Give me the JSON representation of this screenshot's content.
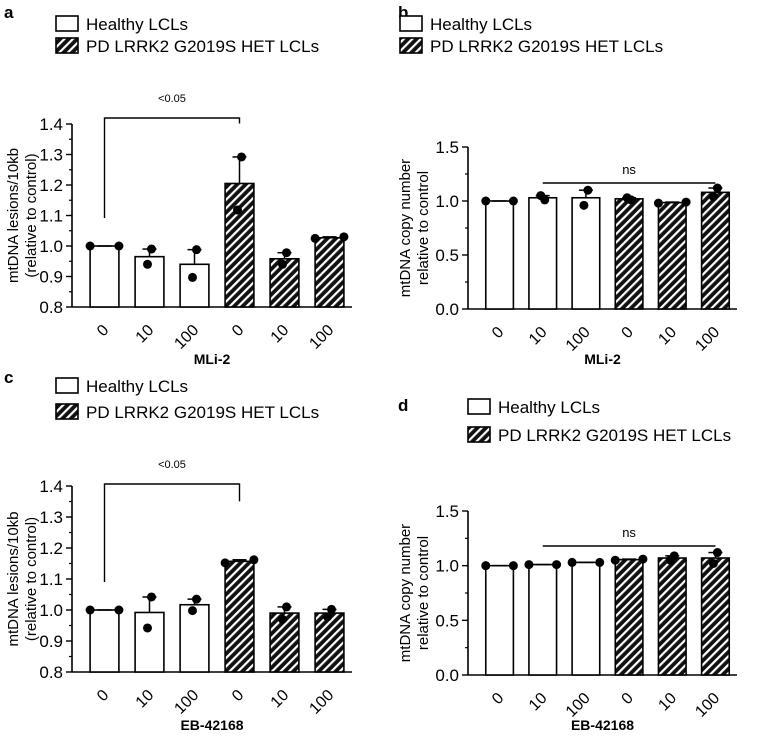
{
  "chart_data": [
    {
      "panel": "a",
      "type": "bar",
      "legend": [
        "Healthy LCLs",
        "PD LRRK2 G2019S HET LCLs"
      ],
      "categories": [
        "0",
        "10",
        "100",
        "0",
        "10",
        "100"
      ],
      "xlabel": "MLi-2",
      "ylabel": [
        "mtDNA lesions/10kb",
        "(relative to control)"
      ],
      "ylim": [
        0.8,
        1.4
      ],
      "yticks": [
        "0.8",
        "0.9",
        "1.0",
        "1.1",
        "1.2",
        "1.3",
        "1.4"
      ],
      "values": [
        1.0,
        0.965,
        0.94,
        1.205,
        0.958,
        1.027
      ],
      "points": [
        [
          1.0,
          1.0
        ],
        [
          0.99,
          0.94
        ],
        [
          0.988,
          0.897
        ],
        [
          1.292,
          1.118
        ],
        [
          0.978,
          0.94
        ],
        [
          1.025,
          1.03
        ]
      ],
      "annotation": {
        "text": "<0.05",
        "from": 0,
        "to": 3
      }
    },
    {
      "panel": "b",
      "type": "bar",
      "legend": [
        "Healthy LCLs",
        "PD LRRK2 G2019S HET LCLs"
      ],
      "categories": [
        "0",
        "10",
        "100",
        "0",
        "10",
        "100"
      ],
      "xlabel": "MLi-2",
      "ylabel": [
        "mtDNA copy number",
        "relative to control"
      ],
      "ylim": [
        0,
        1.5
      ],
      "yticks": [
        "0.0",
        "0.5",
        "1.0",
        "1.5"
      ],
      "values": [
        1.0,
        1.03,
        1.03,
        1.02,
        0.985,
        1.08
      ],
      "points": [
        [
          1.0,
          1.0
        ],
        [
          1.01,
          1.05
        ],
        [
          1.1,
          0.96
        ],
        [
          1.01,
          1.03
        ],
        [
          0.98,
          0.99
        ],
        [
          1.12,
          1.04
        ]
      ],
      "annotation": {
        "text": "ns",
        "from": 1,
        "to": 5
      }
    },
    {
      "panel": "c",
      "type": "bar",
      "legend": [
        "Healthy LCLs",
        "PD LRRK2 G2019S HET LCLs"
      ],
      "categories": [
        "0",
        "10",
        "100",
        "0",
        "10",
        "100"
      ],
      "xlabel": "EB-42168",
      "ylabel": [
        "mtDNA lesions/10kb",
        "(relative to control)"
      ],
      "ylim": [
        0.8,
        1.4
      ],
      "yticks": [
        "0.8",
        "0.9",
        "1.0",
        "1.1",
        "1.2",
        "1.3",
        "1.4"
      ],
      "values": [
        1.0,
        0.992,
        1.017,
        1.157,
        0.99,
        0.99
      ],
      "points": [
        [
          1.0,
          1.0
        ],
        [
          1.042,
          0.942
        ],
        [
          1.035,
          0.998
        ],
        [
          1.152,
          1.162
        ],
        [
          1.01,
          0.97
        ],
        [
          1.002,
          0.978
        ]
      ],
      "annotation": {
        "text": "<0.05",
        "from": 0,
        "to": 3
      }
    },
    {
      "panel": "d",
      "type": "bar",
      "legend": [
        "Healthy LCLs",
        "PD LRRK2 G2019S HET LCLs"
      ],
      "categories": [
        "0",
        "10",
        "100",
        "0",
        "10",
        "100"
      ],
      "xlabel": "EB-42168",
      "ylabel": [
        "mtDNA copy number",
        "relative to control"
      ],
      "ylim": [
        0,
        1.5
      ],
      "yticks": [
        "0.0",
        "0.5",
        "1.0",
        "1.5"
      ],
      "values": [
        1.0,
        1.01,
        1.03,
        1.055,
        1.07,
        1.07
      ],
      "points": [
        [
          1.0,
          1.0
        ],
        [
          1.01,
          1.01
        ],
        [
          1.03,
          1.03
        ],
        [
          1.05,
          1.06
        ],
        [
          1.09,
          1.05
        ],
        [
          1.12,
          1.02
        ]
      ],
      "annotation": {
        "text": "ns",
        "from": 1,
        "to": 5
      }
    }
  ]
}
